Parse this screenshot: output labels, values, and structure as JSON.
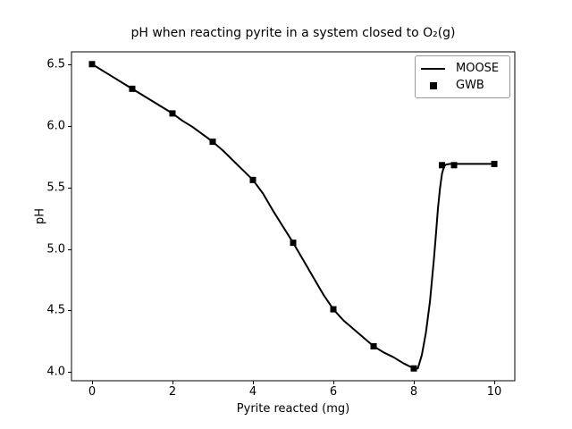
{
  "figure": {
    "background": "#ffffff",
    "frame_color": "#000000"
  },
  "chart_data": {
    "type": "line",
    "title": "pH when reacting pyrite in a system closed to O₂(g)",
    "xlabel": "Pyrite reacted (mg)",
    "ylabel": "pH",
    "xlim": [
      -0.51,
      10.51
    ],
    "ylim": [
      3.93,
      6.6
    ],
    "xticks": [
      0,
      2,
      4,
      6,
      8,
      10
    ],
    "xtick_labels": [
      "0",
      "2",
      "4",
      "6",
      "8",
      "10"
    ],
    "yticks": [
      4.0,
      4.5,
      5.0,
      5.5,
      6.0,
      6.5
    ],
    "ytick_labels": [
      "4.0",
      "4.5",
      "5.0",
      "5.5",
      "6.0",
      "6.5"
    ],
    "grid": false,
    "legend": {
      "position": "upper right",
      "entries": [
        {
          "label": "MOOSE",
          "type": "line"
        },
        {
          "label": "GWB",
          "type": "square-marker"
        }
      ]
    },
    "series": [
      {
        "name": "MOOSE",
        "type": "line",
        "color": "#000000",
        "linewidth": 2,
        "x": [
          0,
          0.25,
          0.5,
          0.75,
          1,
          1.25,
          1.5,
          1.75,
          2,
          2.25,
          2.5,
          2.75,
          3,
          3.25,
          3.5,
          3.75,
          4,
          4.25,
          4.5,
          4.75,
          5,
          5.25,
          5.5,
          5.75,
          6,
          6.25,
          6.5,
          6.75,
          7,
          7.25,
          7.5,
          7.75,
          8,
          8.1,
          8.2,
          8.3,
          8.4,
          8.5,
          8.55,
          8.6,
          8.65,
          8.7,
          8.75,
          8.8,
          8.9,
          9,
          10
        ],
        "y": [
          6.5,
          6.45,
          6.4,
          6.35,
          6.3,
          6.25,
          6.2,
          6.15,
          6.1,
          6.04,
          5.99,
          5.93,
          5.87,
          5.8,
          5.72,
          5.64,
          5.56,
          5.45,
          5.31,
          5.18,
          5.05,
          4.91,
          4.77,
          4.63,
          4.51,
          4.42,
          4.35,
          4.28,
          4.21,
          4.16,
          4.12,
          4.07,
          4.03,
          4.03,
          4.14,
          4.32,
          4.57,
          4.92,
          5.12,
          5.33,
          5.49,
          5.61,
          5.67,
          5.685,
          5.69,
          5.69,
          5.69
        ]
      },
      {
        "name": "GWB",
        "type": "scatter",
        "marker": "square",
        "color": "#000000",
        "size": 7,
        "x": [
          0,
          1,
          2,
          3,
          4,
          5,
          6,
          7,
          8,
          8.7,
          9,
          10
        ],
        "y": [
          6.5,
          6.3,
          6.1,
          5.87,
          5.56,
          5.05,
          4.51,
          4.21,
          4.03,
          5.68,
          5.68,
          5.69
        ]
      }
    ]
  }
}
